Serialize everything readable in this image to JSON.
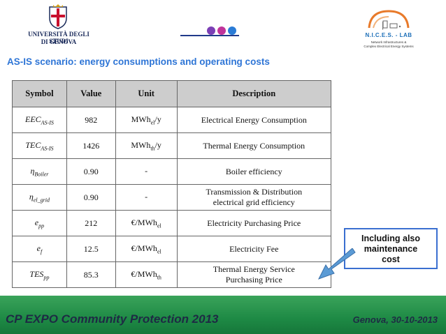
{
  "header": {
    "university": {
      "line1": "UNIVERSITÀ DEGLI STUDI",
      "line2": "DI GENOVA"
    },
    "lab": {
      "name": "N.I.C.E.S. - LAB",
      "sub1": "Network Infrastructures &",
      "sub2": "Complex Electrical Energy Systems"
    },
    "dot_colors": [
      "#7b3fb5",
      "#c0339a",
      "#2a7bd6"
    ]
  },
  "title": "AS-IS scenario: energy consumptions and operating costs",
  "table": {
    "headers": {
      "symbol": "Symbol",
      "value": "Value",
      "unit": "Unit",
      "description": "Description"
    },
    "rows": [
      {
        "sym": "EEC",
        "sym_sub": "AS-IS",
        "value": "982",
        "unit": "MWh",
        "unit_sub": "el",
        "unit_suffix": "/y",
        "desc1": "Electrical Energy Consumption",
        "desc2": ""
      },
      {
        "sym": "TEC",
        "sym_sub": "AS-IS",
        "value": "1426",
        "unit": "MWh",
        "unit_sub": "th",
        "unit_suffix": "/y",
        "desc1": "Thermal Energy Consumption",
        "desc2": ""
      },
      {
        "sym": "η",
        "sym_sub": "Boiler",
        "value": "0.90",
        "unit": "-",
        "unit_sub": "",
        "unit_suffix": "",
        "desc1": "Boiler efficiency",
        "desc2": ""
      },
      {
        "sym": "η",
        "sym_sub": "el_grid",
        "value": "0.90",
        "unit": "-",
        "unit_sub": "",
        "unit_suffix": "",
        "desc1": "Transmission & Distribution",
        "desc2": "electrical grid efficiency"
      },
      {
        "sym": "e",
        "sym_sub": "pp",
        "value": "212",
        "unit": "€/MWh",
        "unit_sub": "el",
        "unit_suffix": "",
        "desc1": "Electricity Purchasing Price",
        "desc2": ""
      },
      {
        "sym": "e",
        "sym_sub": "f",
        "value": "12.5",
        "unit": "€/MWh",
        "unit_sub": "el",
        "unit_suffix": "",
        "desc1": "Electricity Fee",
        "desc2": ""
      },
      {
        "sym": "TES",
        "sym_sub": "pp",
        "value": "85.3",
        "unit": "€/MWh",
        "unit_sub": "th",
        "unit_suffix": "",
        "desc1": "Thermal Energy Service",
        "desc2": "Purchasing Price"
      }
    ]
  },
  "callout": {
    "line1": "Including also",
    "line2": "maintenance",
    "line3": "cost"
  },
  "footer": {
    "left": "CP EXPO Community Protection 2013",
    "right": "Genova, 30-10-2013"
  }
}
